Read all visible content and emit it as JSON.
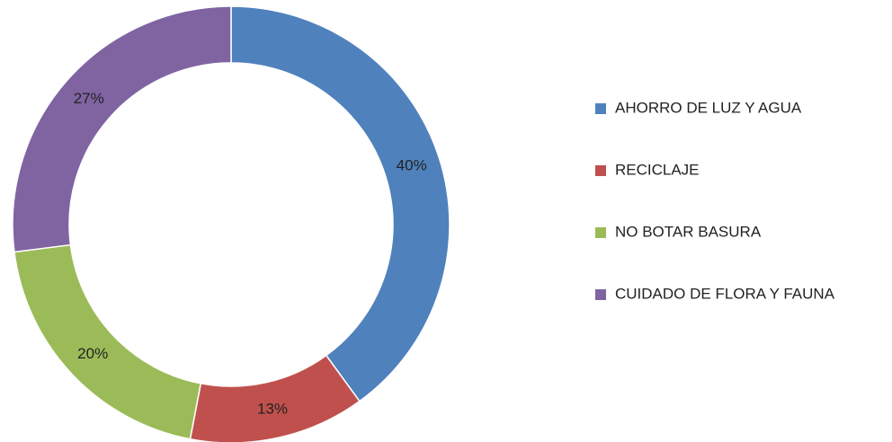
{
  "chart_data": {
    "type": "donut",
    "categories": [
      "AHORRO DE LUZ Y AGUA",
      "RECICLAJE",
      "NO BOTAR BASURA",
      "CUIDADO DE FLORA Y FAUNA"
    ],
    "values": [
      40,
      13,
      20,
      27
    ],
    "value_labels": [
      "40%",
      "13%",
      "20%",
      "27%"
    ],
    "colors": [
      "#4f81bd",
      "#c0504d",
      "#9bbb59",
      "#8064a2"
    ],
    "legend": "right"
  }
}
